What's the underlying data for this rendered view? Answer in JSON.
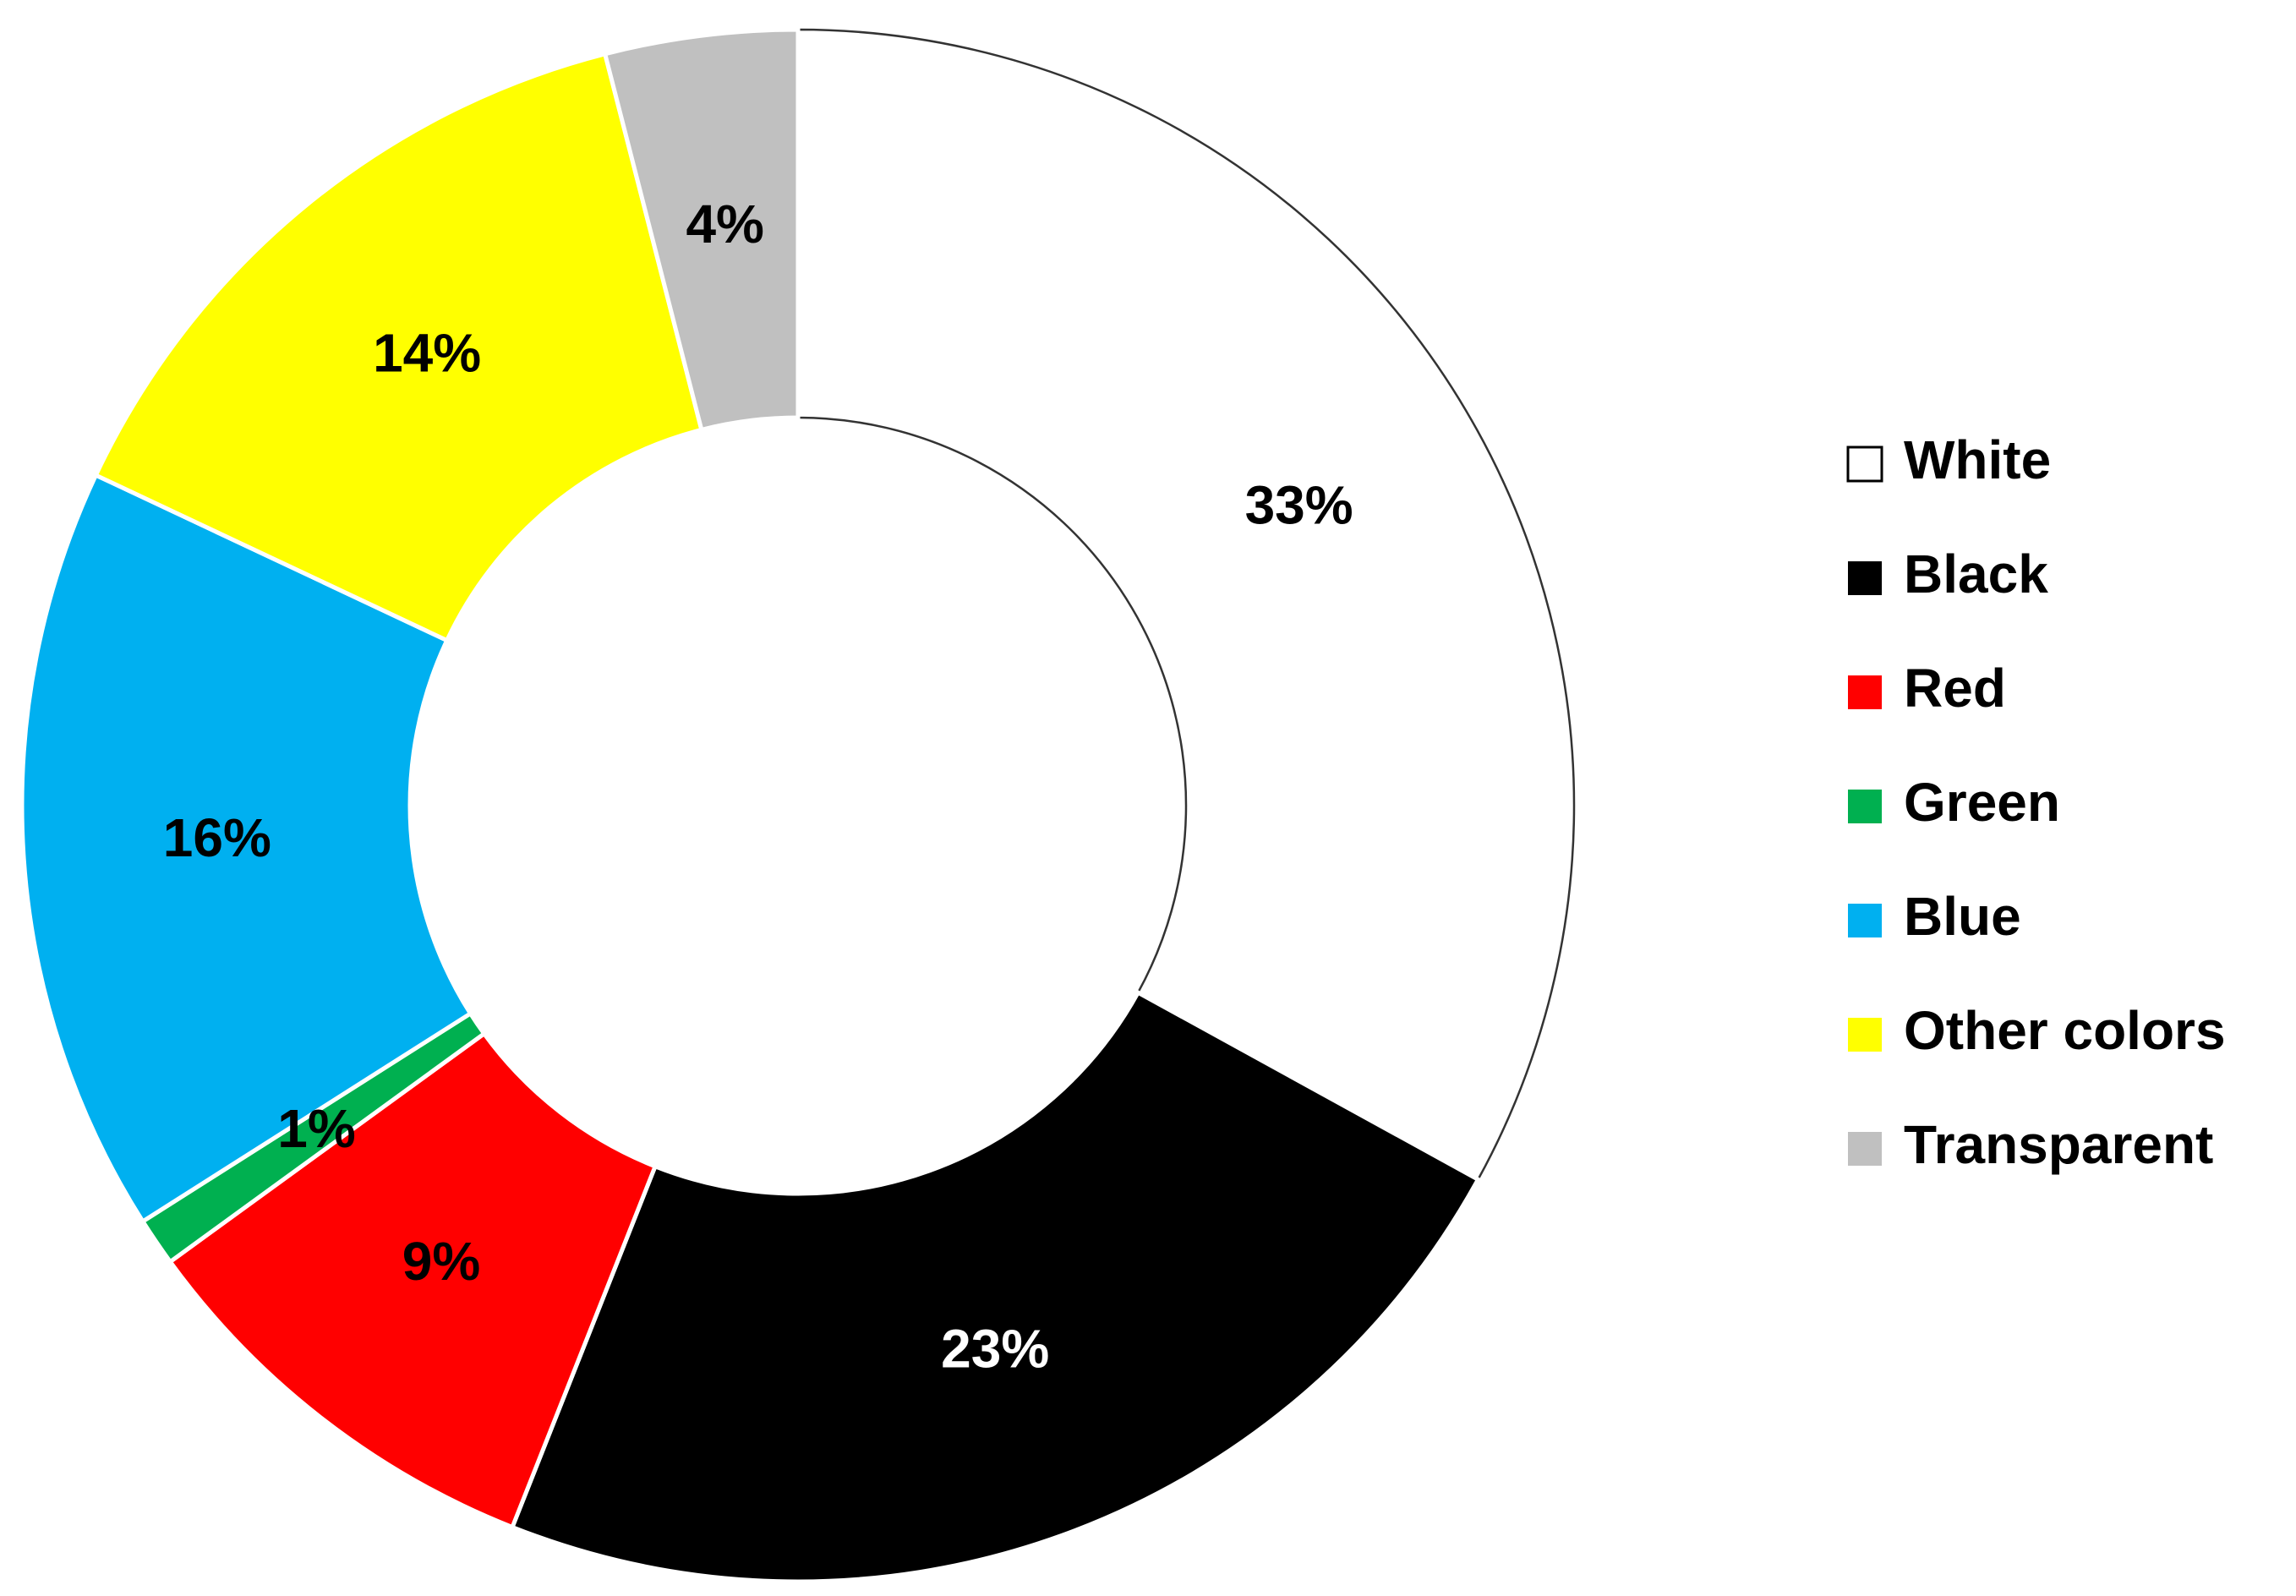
{
  "chart_data": {
    "type": "donut",
    "categories": [
      "White",
      "Black",
      "Red",
      "Green",
      "Blue",
      "Other colors",
      "Transparent"
    ],
    "values": [
      33,
      23,
      9,
      1,
      16,
      14,
      4
    ],
    "value_labels": [
      "33%",
      "23%",
      "9%",
      "1%",
      "16%",
      "14%",
      "4%"
    ],
    "colors": [
      "#ffffff",
      "#000000",
      "#ff0000",
      "#00b050",
      "#00b0f0",
      "#ffff00",
      "#c0c0c0"
    ],
    "legend": "right"
  }
}
